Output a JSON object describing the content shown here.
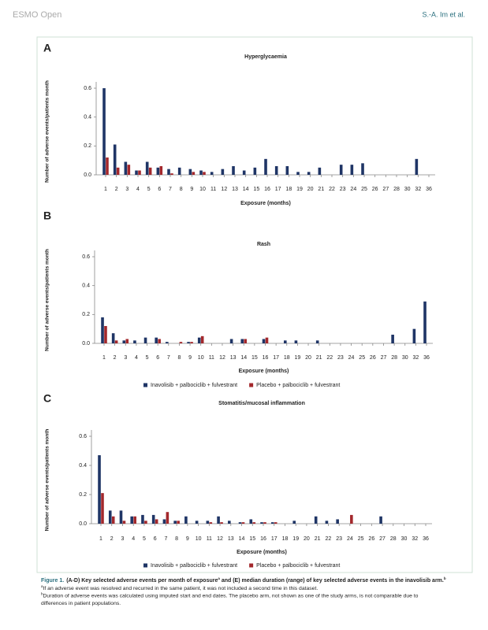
{
  "header": {
    "journal": "ESMO Open",
    "authors": "S.-A. Im et al."
  },
  "chart_data": [
    {
      "type": "bar",
      "panel_label": "A",
      "title": "Hyperglycaemia",
      "x_label": "Exposure (months)",
      "y_label": "Number of adverse events/patients month",
      "categories": [
        "1",
        "2",
        "3",
        "4",
        "5",
        "6",
        "7",
        "8",
        "9",
        "10",
        "11",
        "12",
        "13",
        "14",
        "15",
        "16",
        "17",
        "18",
        "19",
        "20",
        "21",
        "22",
        "23",
        "24",
        "25",
        "26",
        "27",
        "28",
        "30",
        "32",
        "36"
      ],
      "series": [
        {
          "color": "#1f3566",
          "values": [
            0.6,
            0.21,
            0.09,
            0.03,
            0.09,
            0.05,
            0.04,
            0.05,
            0.04,
            0.03,
            0.02,
            0.04,
            0.06,
            0.03,
            0.05,
            0.11,
            0.06,
            0.06,
            0.02,
            0.02,
            0.05,
            null,
            0.07,
            0.07,
            0.08,
            null,
            null,
            null,
            null,
            0.11,
            null
          ]
        },
        {
          "color": "#a3282c",
          "values": [
            0.12,
            0.05,
            0.07,
            0.03,
            0.05,
            0.06,
            0.01,
            null,
            0.02,
            0.02,
            null,
            null,
            null,
            null,
            null,
            null,
            null,
            null,
            null,
            null,
            null,
            null,
            null,
            null,
            null,
            null,
            null,
            null,
            null,
            null,
            null
          ]
        }
      ],
      "ylim": [
        0,
        0.6
      ],
      "yticks": [
        {
          "value": 0,
          "label": "0.0"
        },
        0.2,
        0.4,
        0.6
      ]
    },
    {
      "type": "bar",
      "panel_label": "B",
      "title": "Rash",
      "x_label": "Exposure (months)",
      "y_label": "Number of adverse events/patients month",
      "categories": [
        "1",
        "2",
        "3",
        "4",
        "5",
        "6",
        "7",
        "8",
        "9",
        "10",
        "11",
        "12",
        "13",
        "14",
        "15",
        "16",
        "17",
        "18",
        "19",
        "20",
        "21",
        "22",
        "23",
        "24",
        "25",
        "26",
        "27",
        "28",
        "30",
        "32",
        "36"
      ],
      "series": [
        {
          "name": "Inavolisib + palbociclib + fulvestrant",
          "color": "#1f3566",
          "values": [
            0.18,
            0.07,
            0.02,
            0.02,
            0.04,
            0.04,
            0.01,
            null,
            0.01,
            0.04,
            null,
            null,
            0.03,
            0.03,
            null,
            0.03,
            null,
            0.02,
            0.02,
            null,
            0.02,
            null,
            null,
            null,
            null,
            null,
            null,
            0.06,
            null,
            0.1,
            0.29
          ]
        },
        {
          "name": "Placebo + palbociclib + fulvestrant",
          "color": "#a3282c",
          "values": [
            0.12,
            0.02,
            0.03,
            null,
            null,
            0.03,
            null,
            0.01,
            0.01,
            0.05,
            null,
            null,
            null,
            0.03,
            null,
            0.04,
            null,
            null,
            null,
            null,
            null,
            null,
            null,
            null,
            null,
            null,
            null,
            null,
            null,
            null,
            null
          ]
        }
      ],
      "ylim": [
        0,
        0.6
      ],
      "yticks": [
        {
          "value": 0,
          "label": "0.0"
        },
        0.2,
        0.4,
        0.6
      ]
    },
    {
      "type": "bar",
      "panel_label": "C",
      "title": "Stomatitis/mucosal inflammation",
      "x_label": "Exposure (months)",
      "y_label": "Number of adverse events/patients month",
      "categories": [
        "1",
        "2",
        "3",
        "4",
        "5",
        "6",
        "7",
        "8",
        "9",
        "10",
        "11",
        "12",
        "13",
        "14",
        "15",
        "16",
        "17",
        "18",
        "19",
        "20",
        "21",
        "22",
        "23",
        "24",
        "25",
        "26",
        "27",
        "28",
        "30",
        "32",
        "36"
      ],
      "series": [
        {
          "name": "Inavolisib + palbociclib + fulvestrant",
          "color": "#1f3566",
          "values": [
            0.47,
            0.09,
            0.09,
            0.05,
            0.06,
            0.06,
            0.03,
            0.02,
            0.05,
            0.02,
            0.02,
            0.05,
            0.02,
            0.01,
            0.03,
            0.01,
            0.01,
            null,
            0.02,
            null,
            0.05,
            0.02,
            0.03,
            null,
            null,
            null,
            0.05,
            null,
            null,
            null,
            null
          ]
        },
        {
          "name": "Placebo + palbociclib + fulvestrant",
          "color": "#a3282c",
          "values": [
            0.21,
            0.05,
            0.02,
            0.05,
            0.02,
            0.03,
            0.08,
            0.02,
            null,
            null,
            0.01,
            0.01,
            null,
            0.01,
            0.01,
            0.01,
            0.01,
            null,
            null,
            null,
            null,
            null,
            null,
            0.06,
            null,
            null,
            null,
            null,
            null,
            null,
            null
          ]
        }
      ],
      "ylim": [
        0,
        0.6
      ],
      "yticks": [
        {
          "value": 0,
          "label": "0.0"
        },
        0.2,
        0.4,
        0.6
      ]
    }
  ],
  "caption": {
    "label": "Figure 1.",
    "text": "(A-D) Key selected adverse events per month of exposure",
    "note_a": "a",
    "text_2": " and (E) median duration (range) of key selected adverse events in the inavolisib arm.",
    "note_b": "b"
  },
  "footnotes": [
    {
      "mark": "a",
      "lines": [
        "If an adverse event was resolved and recurred in the same patient, it was not included a second time in this dataset."
      ]
    },
    {
      "mark": "b",
      "lines": [
        "Duration of adverse events was calculated using imputed start and end dates. The placebo arm, not shown as one of the study arms, is not comparable due to",
        "differences in patient populations."
      ]
    }
  ]
}
